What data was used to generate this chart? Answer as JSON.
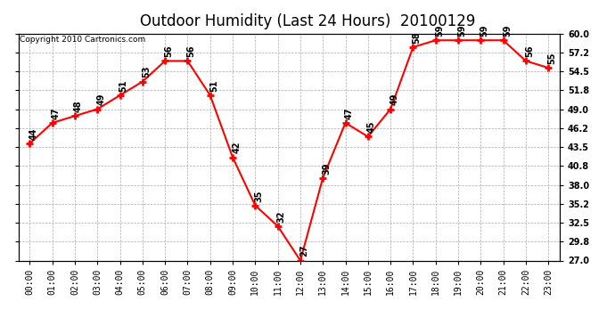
{
  "title": "Outdoor Humidity (Last 24 Hours)  20100129",
  "copyright": "Copyright 2010 Cartronics.com",
  "hours": [
    "00:00",
    "01:00",
    "02:00",
    "03:00",
    "04:00",
    "05:00",
    "06:00",
    "07:00",
    "08:00",
    "09:00",
    "10:00",
    "11:00",
    "12:00",
    "13:00",
    "14:00",
    "15:00",
    "16:00",
    "17:00",
    "18:00",
    "19:00",
    "20:00",
    "21:00",
    "22:00",
    "23:00"
  ],
  "values": [
    44,
    47,
    48,
    49,
    51,
    53,
    56,
    56,
    51,
    42,
    35,
    32,
    27,
    39,
    47,
    45,
    49,
    58,
    59,
    59,
    59,
    59,
    56,
    55
  ],
  "line_color": "red",
  "marker_color": "red",
  "bg_color": "white",
  "grid_color": "#aaaaaa",
  "ylim_min": 27.0,
  "ylim_max": 60.0,
  "yticks": [
    27.0,
    29.8,
    32.5,
    35.2,
    38.0,
    40.8,
    43.5,
    46.2,
    49.0,
    51.8,
    54.5,
    57.2,
    60.0
  ],
  "ytick_labels": [
    "27.0",
    "29.8",
    "32.5",
    "35.2",
    "38.0",
    "40.8",
    "43.5",
    "46.2",
    "49.0",
    "51.8",
    "54.5",
    "57.2",
    "60.0"
  ],
  "title_fontsize": 12,
  "copyright_fontsize": 6.5,
  "tick_fontsize": 7,
  "value_label_fontsize": 7
}
